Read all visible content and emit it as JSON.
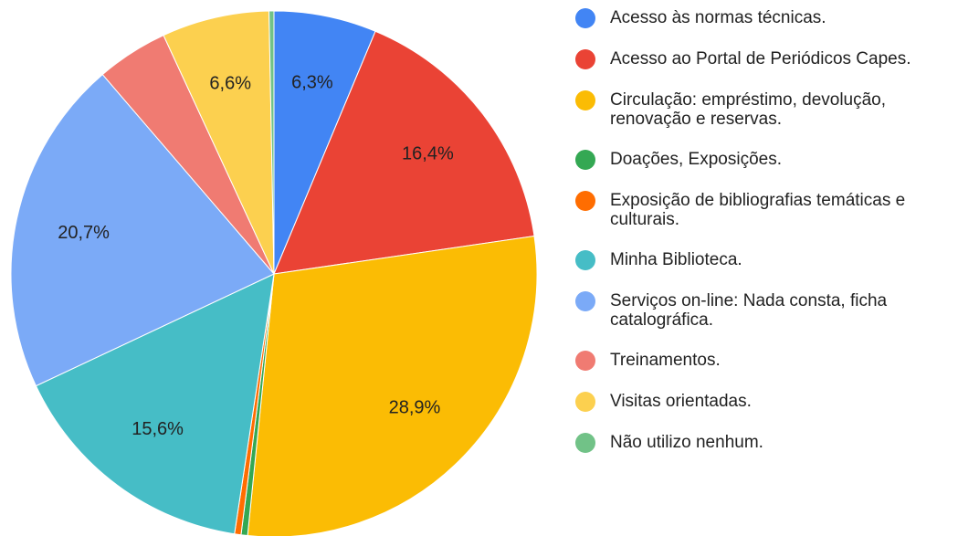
{
  "chart_data": {
    "type": "pie",
    "categories": [
      "Acesso às normas técnicas.",
      "Acesso ao Portal de Periódicos Capes.",
      "Circulação: empréstimo, devolução, renovação e reservas.",
      "Doações, Exposições.",
      "Exposição de bibliografias temáticas e culturais.",
      "Minha Biblioteca.",
      "Serviços on-line: Nada consta, ficha catalográfica.",
      "Treinamentos.",
      "Visitas orientadas.",
      "Não utilizo nenhum."
    ],
    "values": [
      6.3,
      16.4,
      28.9,
      0.4,
      0.4,
      15.6,
      20.7,
      4.4,
      6.6,
      0.3
    ],
    "value_labels": [
      "6,3%",
      "16,4%",
      "28,9%",
      null,
      null,
      "15,6%",
      "20,7%",
      null,
      "6,6%",
      null
    ],
    "colors": [
      "#4285f4",
      "#ea4335",
      "#fbbc04",
      "#34a853",
      "#ff6d01",
      "#46bdc6",
      "#7baaf7",
      "#f07b72",
      "#fcd04f",
      "#71c287"
    ],
    "legend": "right"
  }
}
